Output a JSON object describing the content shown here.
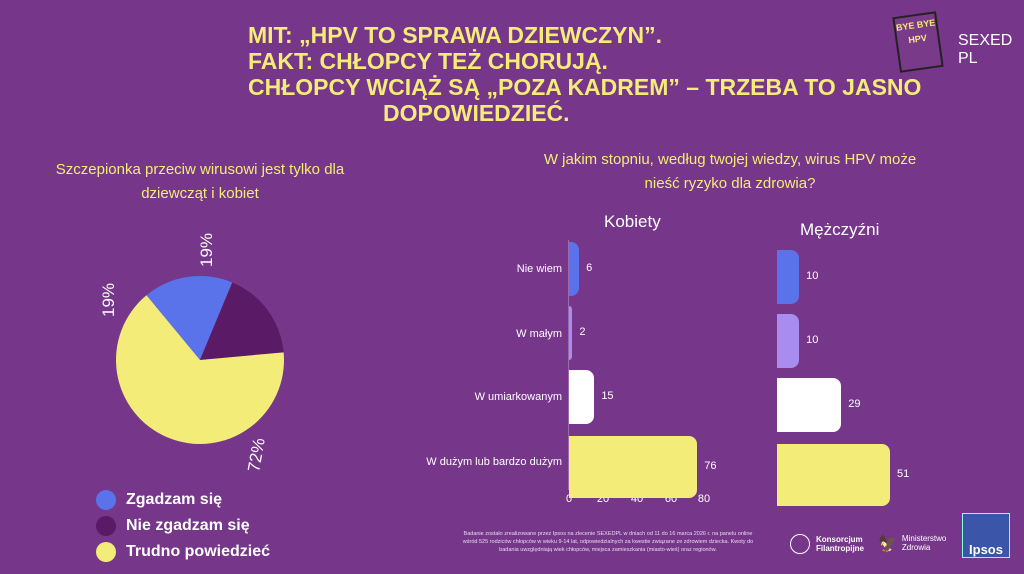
{
  "title": [
    "MIT: „HPV TO SPRAWA DZIEWCZYN”.",
    "FAKT: CHŁOPCY TEŻ CHORUJĄ.",
    "CHŁOPCY WCIĄŻ SĄ „POZA KADREM” – TRZEBA TO JASNO",
    "DOPOWIEDZIEĆ."
  ],
  "logos": {
    "byebye": "BYE BYE HPV",
    "sexed": "SEXED PL",
    "konsorcjum": "Konsorcjum Filantropijne",
    "ministerstwo": "Ministerstwo Zdrowia",
    "ipsos": "Ipsos"
  },
  "note": "Badanie zostało zrealizowane przez Ipsos na zlecenie SEXEDPL w dniach od 11 do 16 marca 2026 r. na panelu online wśród 525 rodziców chłopców w wieku 9-14 lat, odpowiedzialnych za kwestie związane ze zdrowiem dziecka. Kwoty do badania uwzględniają wiek chłopców, miejsca zamieszkania (miasto-wieś) oraz regionów.",
  "colors": {
    "bg": "#763689",
    "yellow": "#f3ec78",
    "blue": "#5a72ea",
    "dark": "#5a1a66",
    "lavender": "#a98cf0",
    "white": "#ffffff"
  },
  "chart_data": [
    {
      "type": "pie",
      "title": "Szczepionka przeciw wirusowi jest tylko dla dziewcząt i kobiet",
      "slices": [
        {
          "label": "Zgadzam się",
          "value": 19,
          "text": "19%",
          "color": "#5a72ea"
        },
        {
          "label": "Nie zgadzam się",
          "value": 19,
          "text": "19%",
          "color": "#5a1a66"
        },
        {
          "label": "Trudno powiedzieć",
          "value": 72,
          "text": "72%",
          "color": "#f3ec78"
        }
      ]
    },
    {
      "type": "bar",
      "title": "W jakim stopniu, według twojej wiedzy, wirus HPV może nieść ryzyko dla zdrowia?",
      "categories": [
        "Nie wiem",
        "W małym",
        "W umiarkowanym",
        "W dużym lub bardzo dużym"
      ],
      "bar_colors": [
        "#5a72ea",
        "#a98cf0",
        "#ffffff",
        "#f3ec78"
      ],
      "series": [
        {
          "name": "Kobiety",
          "values": [
            6,
            2,
            15,
            76
          ]
        },
        {
          "name": "Mężczyźni",
          "values": [
            10,
            10,
            29,
            51
          ]
        }
      ],
      "xticks": [
        "0",
        "20",
        "40",
        "60",
        "80"
      ],
      "xlim": [
        0,
        80
      ]
    }
  ]
}
